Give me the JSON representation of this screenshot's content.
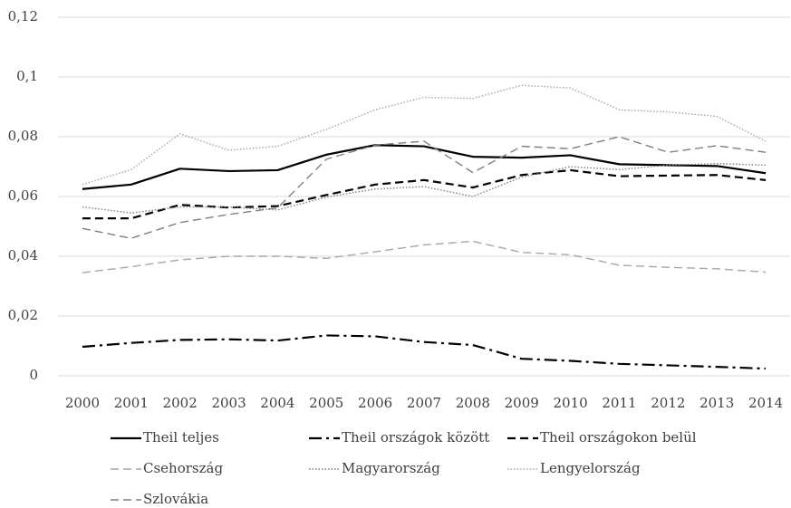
{
  "chart_data": {
    "type": "line",
    "categories": [
      "2000",
      "2001",
      "2002",
      "2003",
      "2004",
      "2005",
      "2006",
      "2007",
      "2008",
      "2009",
      "2010",
      "2011",
      "2012",
      "2013",
      "2014"
    ],
    "ylim": [
      0,
      0.12
    ],
    "yticks": [
      0,
      {
        "value": 0.02,
        "label": "0,02"
      },
      {
        "value": 0.04,
        "label": "0,04"
      },
      {
        "value": 0.06,
        "label": "0,06"
      },
      {
        "value": 0.08,
        "label": "0,08"
      },
      {
        "value": 0.1,
        "label": "0,1"
      },
      {
        "value": 0.12,
        "label": "0,12"
      }
    ],
    "grid": true,
    "legend": "bottom",
    "series": [
      {
        "name": "Theil teljes",
        "color": "#000000",
        "style": "solid",
        "values": [
          0.0625,
          0.064,
          0.0693,
          0.0685,
          0.0688,
          0.074,
          0.0772,
          0.0768,
          0.0733,
          0.073,
          0.0738,
          0.0708,
          0.0705,
          0.0702,
          0.0678
        ]
      },
      {
        "name": "Theil országok között",
        "color": "#000000",
        "style": "dash-dot",
        "values": [
          0.0097,
          0.011,
          0.012,
          0.0122,
          0.0118,
          0.0135,
          0.0132,
          0.0113,
          0.0103,
          0.0057,
          0.005,
          0.004,
          0.0035,
          0.003,
          0.0024
        ]
      },
      {
        "name": "Theil országokon belül",
        "color": "#000000",
        "style": "dashed",
        "values": [
          0.0527,
          0.0527,
          0.0572,
          0.0563,
          0.0568,
          0.0605,
          0.064,
          0.0655,
          0.063,
          0.0672,
          0.0688,
          0.0668,
          0.067,
          0.0672,
          0.0655
        ]
      },
      {
        "name": "Csehország",
        "color": "#a6a6a6",
        "style": "dashed",
        "values": [
          0.0345,
          0.0365,
          0.0388,
          0.04,
          0.04,
          0.0393,
          0.0415,
          0.0438,
          0.045,
          0.0413,
          0.0405,
          0.037,
          0.0363,
          0.0358,
          0.0347
        ]
      },
      {
        "name": "Magyarország",
        "color": "#7f7f7f",
        "style": "dotted",
        "values": [
          0.0565,
          0.0545,
          0.0565,
          0.0565,
          0.0555,
          0.0598,
          0.0625,
          0.0633,
          0.06,
          0.0665,
          0.07,
          0.069,
          0.0705,
          0.071,
          0.0705
        ]
      },
      {
        "name": "Lengyelország",
        "color": "#a6a6a6",
        "style": "dotted",
        "values": [
          0.064,
          0.069,
          0.081,
          0.0755,
          0.0768,
          0.0825,
          0.089,
          0.0932,
          0.0928,
          0.0972,
          0.0963,
          0.089,
          0.0883,
          0.0868,
          0.0785
        ]
      },
      {
        "name": "Szlovákia",
        "color": "#7f7f7f",
        "style": "dashed",
        "values": [
          0.0493,
          0.046,
          0.0513,
          0.054,
          0.0562,
          0.0725,
          0.0772,
          0.0785,
          0.068,
          0.0768,
          0.076,
          0.08,
          0.0748,
          0.077,
          0.0748
        ]
      }
    ]
  }
}
